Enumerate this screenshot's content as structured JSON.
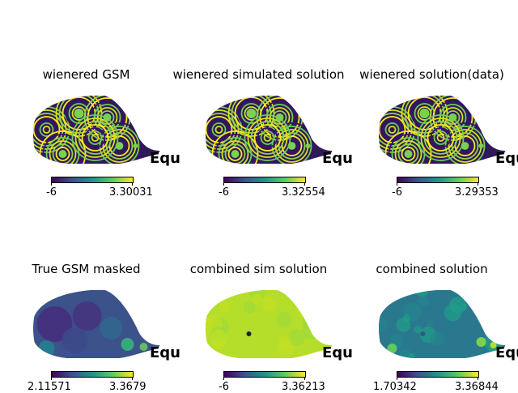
{
  "chart_data": [
    {
      "type": "heatmap",
      "title": "wienered GSM",
      "colorbar": {
        "min": "-6",
        "max": "3.30031"
      },
      "coord_label": "Equ",
      "pattern": "banded",
      "colormap": "viridis"
    },
    {
      "type": "heatmap",
      "title": "wienered simulated solution",
      "colorbar": {
        "min": "-6",
        "max": "3.32554"
      },
      "coord_label": "Equ",
      "pattern": "banded",
      "colormap": "viridis"
    },
    {
      "type": "heatmap",
      "title": "wienered solution(data)",
      "colorbar": {
        "min": "-6",
        "max": "3.29353"
      },
      "coord_label": "Equ",
      "pattern": "banded",
      "colormap": "viridis"
    },
    {
      "type": "heatmap",
      "title": "True GSM masked",
      "colorbar": {
        "min": "2.11571",
        "max": "3.3679"
      },
      "coord_label": "Equ",
      "pattern": "dark",
      "colormap": "viridis"
    },
    {
      "type": "heatmap",
      "title": "combined sim solution",
      "colorbar": {
        "min": "-6",
        "max": "3.36213"
      },
      "coord_label": "Equ",
      "pattern": "uniform",
      "colormap": "viridis"
    },
    {
      "type": "heatmap",
      "title": "combined solution",
      "colorbar": {
        "min": "1.70342",
        "max": "3.36844"
      },
      "coord_label": "Equ",
      "pattern": "smooth",
      "colormap": "viridis"
    }
  ]
}
